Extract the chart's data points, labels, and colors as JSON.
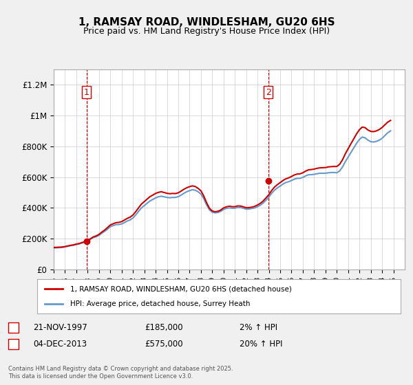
{
  "title_line1": "1, RAMSAY ROAD, WINDLESHAM, GU20 6HS",
  "title_line2": "Price paid vs. HM Land Registry's House Price Index (HPI)",
  "ylabel": "",
  "xlim": [
    1995,
    2026
  ],
  "ylim": [
    0,
    1300000
  ],
  "yticks": [
    0,
    200000,
    400000,
    600000,
    800000,
    1000000,
    1200000
  ],
  "ytick_labels": [
    "£0",
    "£200K",
    "£400K",
    "£600K",
    "£800K",
    "£1M",
    "£1.2M"
  ],
  "xticks": [
    1995,
    1996,
    1997,
    1998,
    1999,
    2000,
    2001,
    2002,
    2003,
    2004,
    2005,
    2006,
    2007,
    2008,
    2009,
    2010,
    2011,
    2012,
    2013,
    2014,
    2015,
    2016,
    2017,
    2018,
    2019,
    2020,
    2021,
    2022,
    2023,
    2024,
    2025
  ],
  "sale1_x": 1997.9,
  "sale1_y": 185000,
  "sale1_label": "1",
  "sale1_date": "21-NOV-1997",
  "sale1_price": "£185,000",
  "sale1_hpi": "2% ↑ HPI",
  "sale2_x": 2013.95,
  "sale2_y": 575000,
  "sale2_label": "2",
  "sale2_date": "04-DEC-2013",
  "sale2_price": "£575,000",
  "sale2_hpi": "20% ↑ HPI",
  "line_color": "#cc0000",
  "hpi_color": "#6699cc",
  "vline_color": "#cc0000",
  "background_color": "#f0f0f0",
  "plot_bg_color": "#ffffff",
  "legend_line1": "1, RAMSAY ROAD, WINDLESHAM, GU20 6HS (detached house)",
  "legend_line2": "HPI: Average price, detached house, Surrey Heath",
  "footer": "Contains HM Land Registry data © Crown copyright and database right 2025.\nThis data is licensed under the Open Government Licence v3.0.",
  "hpi_data_x": [
    1995.0,
    1995.25,
    1995.5,
    1995.75,
    1996.0,
    1996.25,
    1996.5,
    1996.75,
    1997.0,
    1997.25,
    1997.5,
    1997.75,
    1998.0,
    1998.25,
    1998.5,
    1998.75,
    1999.0,
    1999.25,
    1999.5,
    1999.75,
    2000.0,
    2000.25,
    2000.5,
    2000.75,
    2001.0,
    2001.25,
    2001.5,
    2001.75,
    2002.0,
    2002.25,
    2002.5,
    2002.75,
    2003.0,
    2003.25,
    2003.5,
    2003.75,
    2004.0,
    2004.25,
    2004.5,
    2004.75,
    2005.0,
    2005.25,
    2005.5,
    2005.75,
    2006.0,
    2006.25,
    2006.5,
    2006.75,
    2007.0,
    2007.25,
    2007.5,
    2007.75,
    2008.0,
    2008.25,
    2008.5,
    2008.75,
    2009.0,
    2009.25,
    2009.5,
    2009.75,
    2010.0,
    2010.25,
    2010.5,
    2010.75,
    2011.0,
    2011.25,
    2011.5,
    2011.75,
    2012.0,
    2012.25,
    2012.5,
    2012.75,
    2013.0,
    2013.25,
    2013.5,
    2013.75,
    2014.0,
    2014.25,
    2014.5,
    2014.75,
    2015.0,
    2015.25,
    2015.5,
    2015.75,
    2016.0,
    2016.25,
    2016.5,
    2016.75,
    2017.0,
    2017.25,
    2017.5,
    2017.75,
    2018.0,
    2018.25,
    2018.5,
    2018.75,
    2019.0,
    2019.25,
    2019.5,
    2019.75,
    2020.0,
    2020.25,
    2020.5,
    2020.75,
    2021.0,
    2021.25,
    2021.5,
    2021.75,
    2022.0,
    2022.25,
    2022.5,
    2022.75,
    2023.0,
    2023.25,
    2023.5,
    2023.75,
    2024.0,
    2024.25,
    2024.5,
    2024.75
  ],
  "hpi_data_y": [
    140000,
    141000,
    142000,
    143000,
    147000,
    151000,
    155000,
    158000,
    162000,
    166000,
    172000,
    178000,
    185000,
    196000,
    207000,
    213000,
    222000,
    236000,
    248000,
    262000,
    278000,
    285000,
    291000,
    292000,
    296000,
    305000,
    315000,
    322000,
    335000,
    355000,
    378000,
    400000,
    415000,
    430000,
    445000,
    455000,
    465000,
    472000,
    476000,
    472000,
    468000,
    466000,
    468000,
    468000,
    473000,
    483000,
    495000,
    505000,
    512000,
    518000,
    515000,
    505000,
    490000,
    460000,
    420000,
    388000,
    372000,
    368000,
    370000,
    378000,
    390000,
    397000,
    400000,
    398000,
    398000,
    403000,
    402000,
    398000,
    392000,
    393000,
    396000,
    400000,
    408000,
    418000,
    432000,
    450000,
    470000,
    495000,
    515000,
    530000,
    542000,
    555000,
    565000,
    570000,
    578000,
    587000,
    592000,
    592000,
    598000,
    608000,
    615000,
    616000,
    618000,
    622000,
    625000,
    625000,
    625000,
    628000,
    630000,
    630000,
    628000,
    640000,
    665000,
    700000,
    730000,
    760000,
    790000,
    820000,
    845000,
    860000,
    855000,
    840000,
    830000,
    828000,
    832000,
    840000,
    852000,
    870000,
    888000,
    900000
  ],
  "price_data_x": [
    1995.0,
    1995.25,
    1995.5,
    1995.75,
    1996.0,
    1996.25,
    1996.5,
    1996.75,
    1997.0,
    1997.25,
    1997.5,
    1997.75,
    1998.0,
    1998.25,
    1998.5,
    1998.75,
    1999.0,
    1999.25,
    1999.5,
    1999.75,
    2000.0,
    2000.25,
    2000.5,
    2000.75,
    2001.0,
    2001.25,
    2001.5,
    2001.75,
    2002.0,
    2002.25,
    2002.5,
    2002.75,
    2003.0,
    2003.25,
    2003.5,
    2003.75,
    2004.0,
    2004.25,
    2004.5,
    2004.75,
    2005.0,
    2005.25,
    2005.5,
    2005.75,
    2006.0,
    2006.25,
    2006.5,
    2006.75,
    2007.0,
    2007.25,
    2007.5,
    2007.75,
    2008.0,
    2008.25,
    2008.5,
    2008.75,
    2009.0,
    2009.25,
    2009.5,
    2009.75,
    2010.0,
    2010.25,
    2010.5,
    2010.75,
    2011.0,
    2011.25,
    2011.5,
    2011.75,
    2012.0,
    2012.25,
    2012.5,
    2012.75,
    2013.0,
    2013.25,
    2013.5,
    2013.75,
    2014.0,
    2014.25,
    2014.5,
    2014.75,
    2015.0,
    2015.25,
    2015.5,
    2015.75,
    2016.0,
    2016.25,
    2016.5,
    2016.75,
    2017.0,
    2017.25,
    2017.5,
    2017.75,
    2018.0,
    2018.25,
    2018.5,
    2018.75,
    2019.0,
    2019.25,
    2019.5,
    2019.75,
    2020.0,
    2020.25,
    2020.5,
    2020.75,
    2021.0,
    2021.25,
    2021.5,
    2021.75,
    2022.0,
    2022.25,
    2022.5,
    2022.75,
    2023.0,
    2023.25,
    2023.5,
    2023.75,
    2024.0,
    2024.25,
    2024.5,
    2024.75
  ],
  "price_data_y": [
    143000,
    144000,
    145000,
    146000,
    149000,
    153000,
    157000,
    160000,
    165000,
    169000,
    175000,
    181000,
    188000,
    200000,
    212000,
    218000,
    228000,
    243000,
    256000,
    272000,
    289000,
    297000,
    304000,
    306000,
    311000,
    321000,
    332000,
    340000,
    354000,
    376000,
    401000,
    425000,
    441000,
    457000,
    473000,
    483000,
    494000,
    501000,
    505000,
    500000,
    495000,
    492000,
    494000,
    493000,
    498000,
    509000,
    521000,
    531000,
    538000,
    543000,
    539000,
    527000,
    511000,
    478000,
    434000,
    398000,
    380000,
    375000,
    378000,
    386000,
    400000,
    407000,
    411000,
    408000,
    408000,
    413000,
    412000,
    407000,
    401000,
    402000,
    405000,
    410000,
    419000,
    430000,
    445000,
    465000,
    486000,
    513000,
    535000,
    551000,
    564000,
    578000,
    589000,
    595000,
    604000,
    614000,
    620000,
    621000,
    628000,
    639000,
    647000,
    649000,
    652000,
    657000,
    660000,
    661000,
    662000,
    666000,
    668000,
    669000,
    669000,
    683000,
    712000,
    751000,
    784000,
    817000,
    849000,
    881000,
    908000,
    925000,
    921000,
    906000,
    897000,
    895000,
    900000,
    909000,
    922000,
    940000,
    957000,
    968000
  ]
}
